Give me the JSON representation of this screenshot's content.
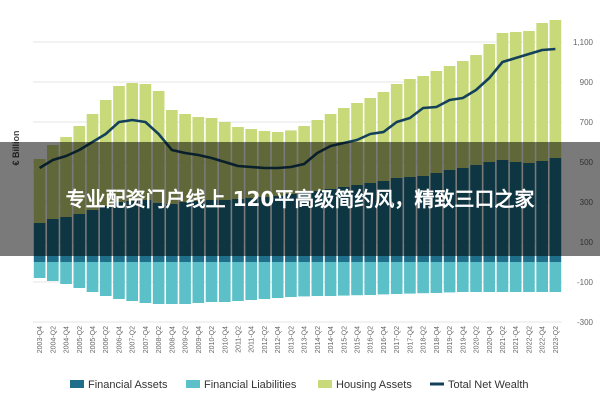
{
  "overlay": {
    "title": "专业配资门户线上 120平高级简约风，精致三口之家"
  },
  "chart_data": {
    "type": "bar+line",
    "ylabel": "€ Billion",
    "ylim": [
      -300,
      1200
    ],
    "yticks": [
      -300,
      -100,
      100,
      300,
      500,
      700,
      900,
      1100
    ],
    "ytick_labels": [
      "-300",
      "-100",
      "100",
      "300",
      "500",
      "700",
      "900",
      "1,100"
    ],
    "grid": true,
    "legend_position": "bottom",
    "categories": [
      "2003-Q4",
      "2004-Q2",
      "2004-Q4",
      "2005-Q2",
      "2005-Q4",
      "2006-Q2",
      "2006-Q4",
      "2007-Q2",
      "2007-Q4",
      "2008-Q2",
      "2008-Q4",
      "2009-Q2",
      "2009-Q4",
      "2010-Q2",
      "2010-Q4",
      "2011-Q2",
      "2011-Q4",
      "2012-Q2",
      "2012-Q4",
      "2013-Q2",
      "2013-Q4",
      "2014-Q2",
      "2014-Q4",
      "2015-Q2",
      "2015-Q4",
      "2016-Q2",
      "2016-Q4",
      "2017-Q2",
      "2017-Q4",
      "2018-Q2",
      "2018-Q4",
      "2019-Q2",
      "2019-Q4",
      "2020-Q2",
      "2020-Q4",
      "2021-Q2",
      "2021-Q4",
      "2022-Q2",
      "2022-Q4",
      "2023-Q2"
    ],
    "series": [
      {
        "name": "Financial Assets",
        "kind": "bar",
        "color": "#1f6f8b",
        "values": [
          195,
          215,
          225,
          240,
          260,
          280,
          300,
          305,
          310,
          295,
          290,
          300,
          305,
          310,
          310,
          315,
          320,
          325,
          330,
          340,
          350,
          355,
          365,
          375,
          385,
          395,
          405,
          420,
          425,
          430,
          445,
          460,
          470,
          485,
          500,
          510,
          500,
          495,
          505,
          520
        ]
      },
      {
        "name": "Financial Liabilities",
        "kind": "bar",
        "color": "#5bc0c7",
        "values": [
          -80,
          -95,
          -110,
          -130,
          -150,
          -170,
          -185,
          -195,
          -205,
          -210,
          -210,
          -210,
          -205,
          -200,
          -200,
          -195,
          -190,
          -185,
          -180,
          -175,
          -172,
          -170,
          -170,
          -168,
          -166,
          -165,
          -162,
          -160,
          -158,
          -156,
          -155,
          -152,
          -150,
          -150,
          -150,
          -150,
          -150,
          -150,
          -150,
          -150
        ]
      },
      {
        "name": "Housing Assets",
        "kind": "bar",
        "color": "#c8d97a",
        "values": [
          320,
          370,
          400,
          440,
          480,
          530,
          580,
          590,
          580,
          560,
          470,
          440,
          420,
          410,
          390,
          360,
          345,
          330,
          320,
          318,
          330,
          355,
          375,
          395,
          410,
          425,
          445,
          470,
          490,
          500,
          510,
          520,
          535,
          550,
          590,
          635,
          650,
          660,
          690,
          690
        ]
      },
      {
        "name": "Total Net Wealth",
        "kind": "line",
        "color": "#14415a",
        "values": [
          470,
          510,
          530,
          560,
          600,
          640,
          700,
          710,
          700,
          640,
          560,
          545,
          535,
          520,
          500,
          480,
          475,
          470,
          470,
          475,
          490,
          545,
          580,
          595,
          610,
          640,
          650,
          700,
          720,
          770,
          775,
          810,
          820,
          860,
          920,
          1000,
          1020,
          1040,
          1060,
          1065
        ]
      }
    ]
  }
}
